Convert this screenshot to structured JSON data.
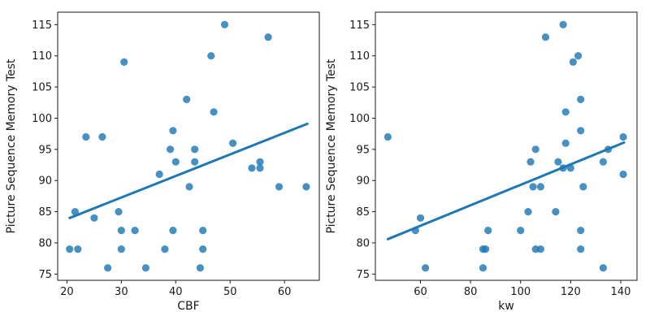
{
  "figure": {
    "background": "#ffffff",
    "point_color": "#1f77b4",
    "point_opacity": 0.82,
    "line_color": "#1f77b4"
  },
  "chart_data": [
    {
      "type": "scatter",
      "title": "",
      "xlabel": "CBF",
      "ylabel": "Picture Sequence Memory Test",
      "xlim": [
        18.3,
        66.4
      ],
      "ylim": [
        74,
        117
      ],
      "xticks": [
        20,
        30,
        40,
        50,
        60
      ],
      "yticks": [
        75,
        80,
        85,
        90,
        95,
        100,
        105,
        110,
        115
      ],
      "grid": false,
      "legend_position": "none",
      "points": [
        [
          20.5,
          79
        ],
        [
          21.5,
          85
        ],
        [
          22,
          79
        ],
        [
          23.5,
          97
        ],
        [
          25,
          84
        ],
        [
          26.5,
          97
        ],
        [
          27.5,
          76
        ],
        [
          29.5,
          85
        ],
        [
          30,
          82
        ],
        [
          30,
          79
        ],
        [
          30.5,
          109
        ],
        [
          32.5,
          82
        ],
        [
          34.5,
          76
        ],
        [
          37,
          91
        ],
        [
          38,
          79
        ],
        [
          39,
          95
        ],
        [
          39.5,
          98
        ],
        [
          39.5,
          82
        ],
        [
          40,
          93
        ],
        [
          42,
          103
        ],
        [
          42.5,
          89
        ],
        [
          43.5,
          95
        ],
        [
          43.5,
          93
        ],
        [
          44.5,
          76
        ],
        [
          45,
          82
        ],
        [
          45,
          79
        ],
        [
          46.5,
          110
        ],
        [
          47,
          101
        ],
        [
          49,
          115
        ],
        [
          50.5,
          96
        ],
        [
          54,
          92
        ],
        [
          55.5,
          93
        ],
        [
          55.5,
          92
        ],
        [
          57,
          113
        ],
        [
          59,
          89
        ],
        [
          64,
          89
        ]
      ],
      "regression_line": {
        "x1": 20.5,
        "y1": 84.0,
        "x2": 64.2,
        "y2": 99.1
      }
    },
    {
      "type": "scatter",
      "title": "",
      "xlabel": "kw",
      "ylabel": "Picture Sequence Memory Test",
      "xlim": [
        42,
        146.5
      ],
      "ylim": [
        74,
        117
      ],
      "xticks": [
        60,
        80,
        100,
        120,
        140
      ],
      "yticks": [
        75,
        80,
        85,
        90,
        95,
        100,
        105,
        110,
        115
      ],
      "grid": false,
      "legend_position": "none",
      "points": [
        [
          47,
          97
        ],
        [
          58,
          82
        ],
        [
          60,
          84
        ],
        [
          62,
          76
        ],
        [
          85,
          76
        ],
        [
          85,
          79
        ],
        [
          86,
          79
        ],
        [
          87,
          82
        ],
        [
          100,
          82
        ],
        [
          103,
          85
        ],
        [
          104,
          93
        ],
        [
          105,
          89
        ],
        [
          106,
          95
        ],
        [
          106,
          79
        ],
        [
          108,
          89
        ],
        [
          108,
          79
        ],
        [
          110,
          113
        ],
        [
          114,
          85
        ],
        [
          115,
          93
        ],
        [
          117,
          115
        ],
        [
          117,
          92
        ],
        [
          118,
          96
        ],
        [
          118,
          101
        ],
        [
          120,
          92
        ],
        [
          121,
          109
        ],
        [
          123,
          110
        ],
        [
          124,
          103
        ],
        [
          124,
          98
        ],
        [
          124,
          82
        ],
        [
          124,
          79
        ],
        [
          125,
          89
        ],
        [
          133,
          76
        ],
        [
          133,
          93
        ],
        [
          135,
          95
        ],
        [
          141,
          97
        ],
        [
          141,
          91
        ]
      ],
      "regression_line": {
        "x1": 47,
        "y1": 80.6,
        "x2": 141.3,
        "y2": 96.1
      }
    }
  ]
}
